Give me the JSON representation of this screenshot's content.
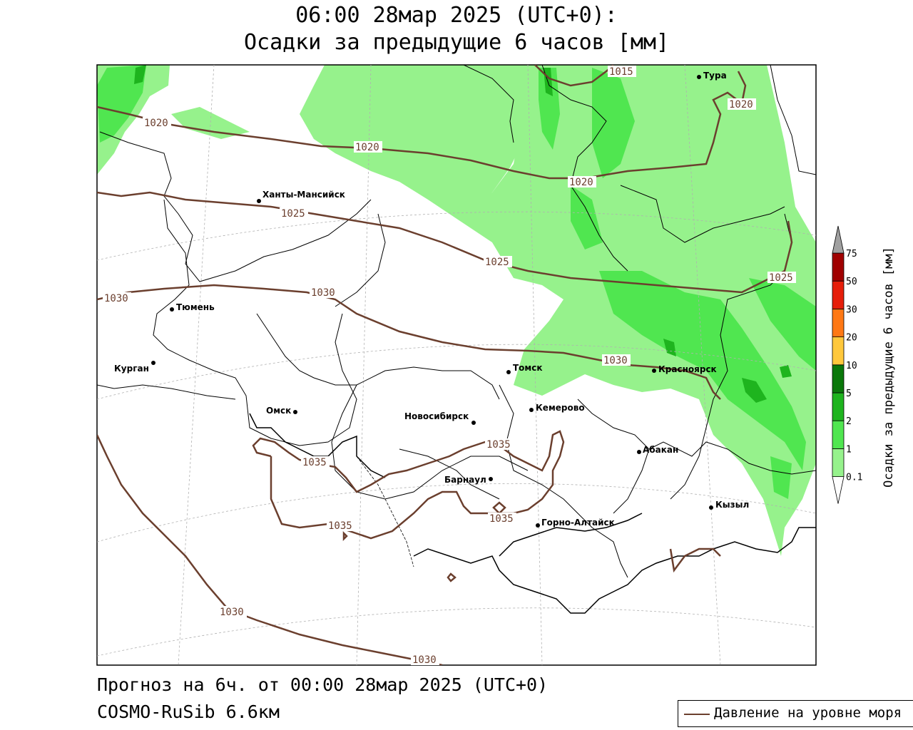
{
  "title_line1": "06:00 28мар 2025 (UTC+0):",
  "title_line2": "Осадки за предыдущие 6 часов [мм]",
  "footer_line1": "Прогноз на 6ч. от 00:00 28мар 2025 (UTC+0)",
  "footer_line2": "COSMO-RuSib 6.6км",
  "legend_pressure": "Давление на уровне моря",
  "colorbar": {
    "title": "Осадки за предыдущие 6 часов [мм]",
    "levels": [
      "0.1",
      "1",
      "2",
      "5",
      "10",
      "20",
      "30",
      "50",
      "75"
    ],
    "colors": [
      "#fefefe",
      "#96f28c",
      "#50e650",
      "#1eb41e",
      "#0a780a",
      "#ffc83c",
      "#ff7814",
      "#e61e0a",
      "#a00000",
      "#a0a0a0"
    ]
  },
  "cities": [
    {
      "name": "Тура"
    },
    {
      "name": "Ханты-Мансийск"
    },
    {
      "name": "Тюмень"
    },
    {
      "name": "Курган"
    },
    {
      "name": "Омск"
    },
    {
      "name": "Новосибирск"
    },
    {
      "name": "Томск"
    },
    {
      "name": "Кемерово"
    },
    {
      "name": "Красноярск"
    },
    {
      "name": "Барнаул"
    },
    {
      "name": "Абакан"
    },
    {
      "name": "Горно-Алтайск"
    },
    {
      "name": "Кызыл"
    }
  ],
  "isobar_labels": [
    {
      "value": "1015"
    },
    {
      "value": "1020"
    },
    {
      "value": "1020"
    },
    {
      "value": "1020"
    },
    {
      "value": "1020"
    },
    {
      "value": "1025"
    },
    {
      "value": "1025"
    },
    {
      "value": "1025"
    },
    {
      "value": "1030"
    },
    {
      "value": "1030"
    },
    {
      "value": "1030"
    },
    {
      "value": "1030"
    },
    {
      "value": "1030"
    },
    {
      "value": "1035"
    },
    {
      "value": "1035"
    },
    {
      "value": "1035"
    },
    {
      "value": "1035"
    }
  ]
}
